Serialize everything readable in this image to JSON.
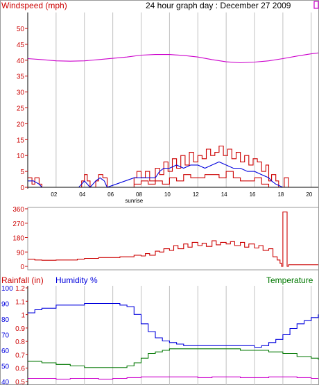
{
  "colors": {
    "red": "#cc0000",
    "blue": "#0000dd",
    "green": "#007700",
    "magenta": "#cc00cc",
    "axis": "#000000",
    "grid": "#c0c0c0",
    "frame": "#9a9a9a"
  },
  "chart_data": [
    {
      "type": "line",
      "title": "24 hour graph day : December 27 2009",
      "ylabel": "Windspeed (mph)",
      "ylim": [
        0,
        50
      ],
      "yticks": [
        0,
        5,
        10,
        15,
        20,
        25,
        30,
        35,
        40,
        45,
        50
      ],
      "xlim": [
        0,
        20.5
      ],
      "xticks": [
        "02",
        "04",
        "06",
        "08",
        "10",
        "12",
        "14",
        "16",
        "18",
        "20"
      ],
      "xtick_values": [
        2,
        4,
        6,
        8,
        10,
        12,
        14,
        16,
        18,
        20
      ],
      "annotation": {
        "text": "sunrise",
        "x": 7.5
      },
      "grid": true,
      "series": [
        {
          "color": "#cc00cc",
          "x": [
            0,
            1,
            2,
            3,
            4,
            5,
            6,
            7,
            8,
            9,
            10,
            11,
            12,
            13,
            14,
            15,
            16,
            17,
            18,
            19,
            20,
            20.5
          ],
          "y": [
            40.5,
            40.2,
            39.8,
            39.7,
            39.8,
            40.2,
            40.6,
            41,
            41.6,
            41.8,
            41.8,
            41.5,
            41,
            40.2,
            39.5,
            39.2,
            39.4,
            39.8,
            40.5,
            41.3,
            42,
            42.3
          ]
        },
        {
          "color": "#cc0000",
          "x": [
            0,
            0.3,
            0.5,
            0.8,
            1,
            3.6,
            3.8,
            4,
            4.2,
            4.4,
            4.6,
            4.8,
            5,
            5.3,
            5.6,
            6,
            6.5,
            7,
            7.5,
            7.7,
            8,
            8.3,
            8.6,
            9,
            9.3,
            9.6,
            9.9,
            10.2,
            10.5,
            10.8,
            11.1,
            11.4,
            11.7,
            12,
            12.3,
            12.6,
            12.9,
            13.2,
            13.5,
            13.8,
            14.1,
            14.4,
            14.7,
            15,
            15.3,
            15.6,
            15.9,
            16.2,
            16.5,
            16.8,
            17,
            17.2,
            17.5,
            17.7,
            17.9,
            18.1,
            18.4,
            20.5
          ],
          "y": [
            3,
            1,
            3,
            1,
            0,
            0,
            2,
            4,
            2,
            0,
            0,
            2,
            4,
            3,
            0,
            0,
            0,
            0,
            3,
            5,
            3,
            5,
            2,
            6,
            4,
            8,
            5,
            9,
            6,
            10,
            7,
            11,
            8,
            10,
            9,
            12,
            10,
            11,
            13,
            10,
            12,
            9,
            11,
            8,
            10,
            7,
            9,
            8,
            5,
            7,
            2,
            4,
            2,
            0,
            0,
            3,
            0,
            0
          ]
        },
        {
          "color": "#cc0000",
          "x": [
            7.5,
            8,
            8.5,
            9,
            9.5,
            10,
            10.5,
            11,
            11.5,
            12,
            12.5,
            13,
            13.5,
            14,
            14.5,
            15,
            15.5,
            16,
            16.5,
            17
          ],
          "y": [
            1,
            2,
            1,
            2,
            1,
            3,
            2,
            4,
            3,
            3,
            4,
            4,
            3,
            5,
            3,
            2,
            2,
            3,
            1,
            0
          ]
        },
        {
          "color": "#0000dd",
          "x": [
            0,
            0.4,
            0.8,
            1,
            3.6,
            4,
            4.4,
            4.8,
            5.1,
            5.4,
            5.6,
            7.5,
            8,
            8.5,
            9,
            9.3,
            9.6,
            10,
            10.5,
            11,
            11.5,
            12,
            12.5,
            13,
            13.5,
            14,
            14.5,
            15,
            15.5,
            16,
            16.5,
            17,
            17.2,
            17.5,
            18,
            20.5
          ],
          "y": [
            2,
            2,
            1,
            0,
            0,
            2,
            0,
            2,
            3,
            2,
            0,
            3,
            3,
            3,
            3,
            5,
            6,
            6,
            7,
            6,
            7,
            7,
            6,
            7,
            8,
            7,
            6,
            6,
            5,
            5,
            4,
            3,
            2,
            1,
            0,
            0
          ]
        }
      ]
    },
    {
      "type": "line",
      "ylabel": "",
      "ylim": [
        0,
        360
      ],
      "yticks": [
        0,
        90,
        180,
        270,
        360
      ],
      "xlim": [
        0,
        20.5
      ],
      "grid": false,
      "series": [
        {
          "color": "#cc0000",
          "x": [
            0,
            0.5,
            1,
            2,
            3,
            3.5,
            4,
            5,
            6,
            6.5,
            7,
            7.5,
            8,
            8.3,
            8.6,
            9,
            9.3,
            9.6,
            10,
            10.3,
            10.6,
            11,
            11.3,
            11.6,
            12,
            12.3,
            12.6,
            13,
            13.3,
            13.6,
            14,
            14.3,
            14.6,
            15,
            15.3,
            15.6,
            16,
            16.3,
            16.6,
            17,
            17.3,
            17.6,
            17.8,
            17.9,
            18,
            18.1,
            18.2,
            18.3,
            18.4,
            20.5
          ],
          "y": [
            45,
            40,
            38,
            40,
            40,
            45,
            50,
            55,
            55,
            60,
            60,
            70,
            65,
            80,
            70,
            95,
            90,
            110,
            100,
            130,
            110,
            140,
            120,
            150,
            130,
            145,
            125,
            160,
            135,
            150,
            140,
            155,
            130,
            150,
            120,
            140,
            115,
            130,
            100,
            110,
            60,
            40,
            20,
            0,
            340,
            340,
            340,
            0,
            10,
            10
          ]
        }
      ]
    },
    {
      "type": "line",
      "title": "",
      "ylabel_left": "Rainfall (in)",
      "ylabel_left2": "Humidity %",
      "ylabel_right": "Temperature",
      "ylim_rain": [
        0.5,
        1.2
      ],
      "ylim_humidity": [
        40,
        100
      ],
      "yticks_humidity": [
        40,
        50,
        60,
        70,
        80,
        90,
        100
      ],
      "yticks_rain": [
        0.5,
        0.6,
        0.7,
        0.8,
        0.9,
        1.0,
        1.1,
        1.2
      ],
      "yticks_rain_labels": [
        "0.5",
        "0.6",
        "0.7",
        "0.8",
        "0.9",
        "1",
        "1.1",
        "1.2"
      ],
      "xlim": [
        0,
        20.5
      ],
      "grid": true,
      "series": [
        {
          "color": "#0000dd",
          "x": [
            0,
            0.5,
            1,
            2,
            3,
            4,
            5,
            6,
            6.5,
            7,
            7.5,
            8,
            8.5,
            9,
            9.5,
            10,
            10.5,
            11,
            12,
            13,
            14,
            15,
            15.5,
            16,
            16.5,
            17,
            17.5,
            18,
            18.5,
            19,
            19.5,
            20,
            20.5
          ],
          "y": [
            84,
            86,
            87,
            89,
            89,
            90,
            90,
            90,
            89,
            88,
            83,
            77,
            72,
            68,
            66,
            65,
            64,
            63,
            63,
            63,
            63,
            63,
            63,
            62,
            63,
            65,
            67,
            70,
            74,
            77,
            79,
            81,
            83
          ]
        },
        {
          "color": "#007700",
          "x": [
            0,
            1,
            2,
            3,
            4,
            5,
            6,
            6.5,
            7,
            7.5,
            8,
            8.5,
            9,
            9.5,
            10,
            11,
            12,
            13,
            14,
            15,
            16,
            17,
            18,
            19,
            20,
            20.5
          ],
          "y": [
            53,
            52,
            51,
            50,
            49,
            49,
            49,
            49,
            50,
            52,
            55,
            58,
            59,
            60,
            61,
            61,
            61,
            61,
            61,
            60,
            60,
            59,
            58,
            56,
            55,
            54
          ]
        },
        {
          "color": "#cc00cc",
          "x": [
            0,
            1,
            2,
            3,
            4,
            5,
            6,
            7,
            8,
            9,
            10,
            11,
            12,
            13,
            14,
            15,
            16,
            17,
            18,
            19,
            20,
            20.5
          ],
          "y": [
            42,
            42,
            41.5,
            42,
            42,
            41.5,
            42,
            42.5,
            43,
            43,
            43,
            43,
            42.5,
            43,
            43,
            42.5,
            42.5,
            43,
            43,
            42.5,
            42,
            42
          ]
        }
      ]
    }
  ]
}
